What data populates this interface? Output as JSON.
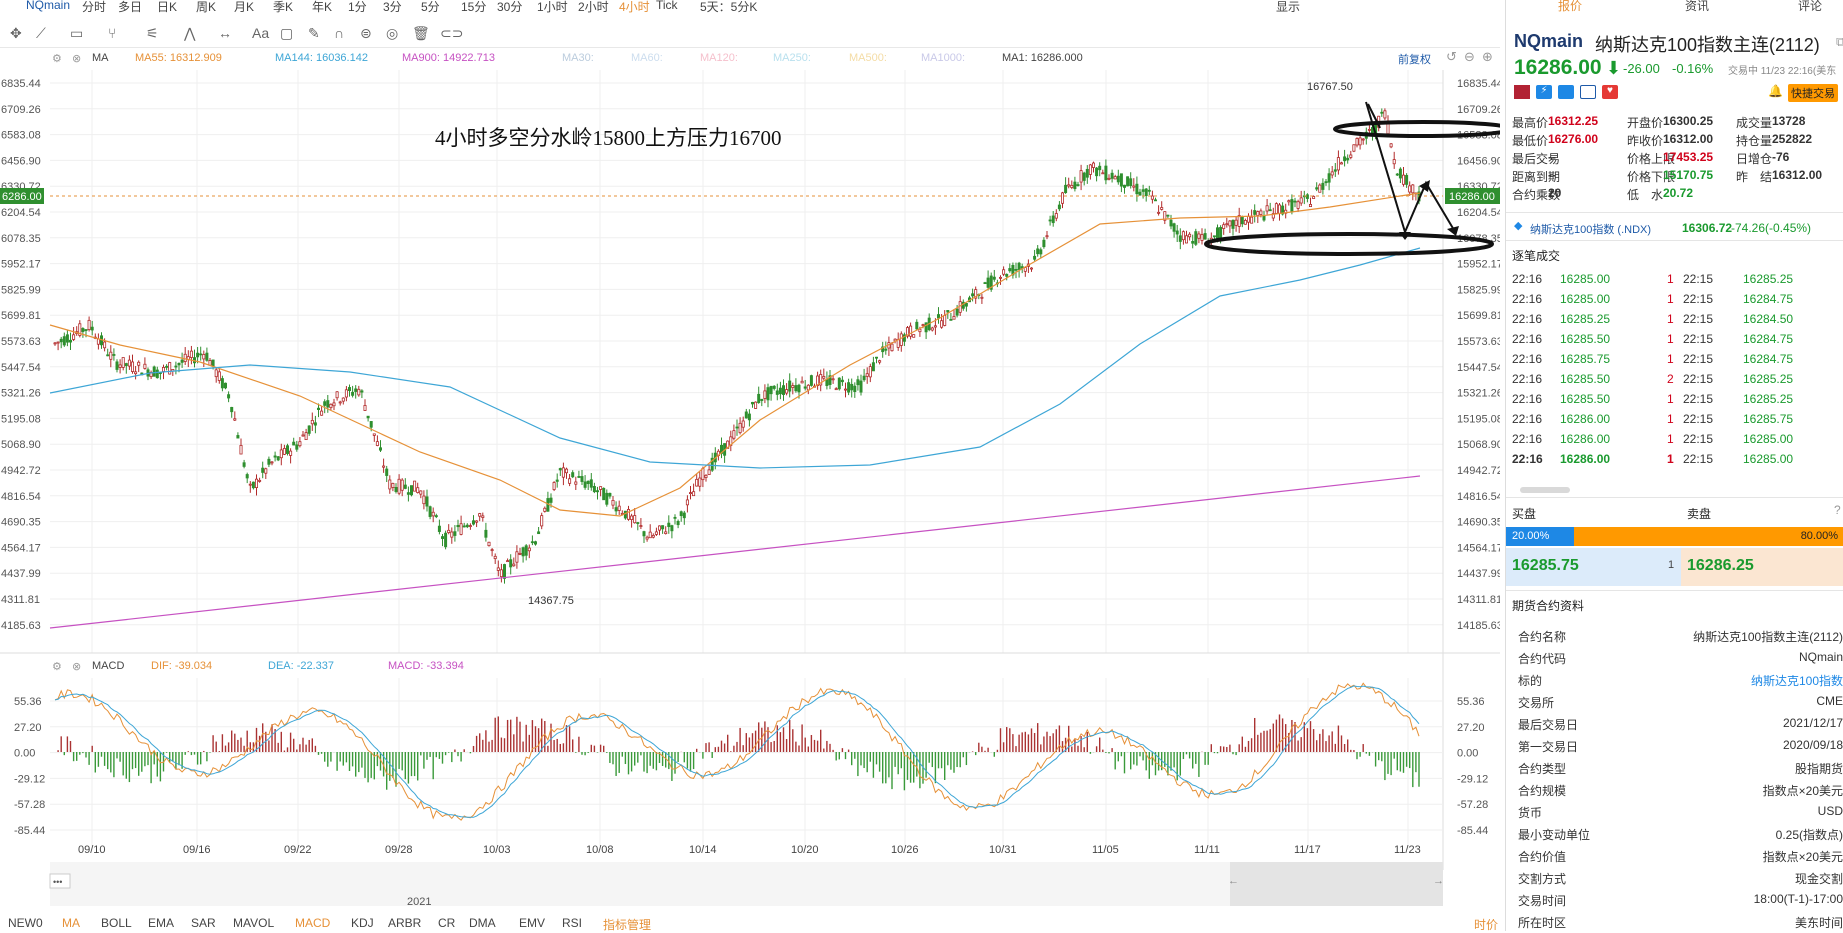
{
  "top_menu": [
    "NQmain",
    "分时",
    "多日",
    "日K",
    "周K",
    "月K",
    "季K",
    "年K",
    "1分",
    "3分",
    "5分",
    "15分",
    "30分",
    "1小时",
    "2小时",
    "4小时",
    "Tick",
    "5天：5分K"
  ],
  "top_right": [
    "显示"
  ],
  "ma_labels": [
    {
      "t": "MA",
      "c": "#444"
    },
    {
      "t": "MA55: 16312.909",
      "c": "#e69138"
    },
    {
      "t": "MA144: 16036.142",
      "c": "#3ea6d6"
    },
    {
      "t": "MA900: 14922.713",
      "c": "#c651c2"
    },
    {
      "t": "MA30:",
      "c": "#bcd"
    },
    {
      "t": "MA60:",
      "c": "#cde"
    },
    {
      "t": "MA120:",
      "c": "#f5c0cc"
    },
    {
      "t": "MA250:",
      "c": "#b9e0ee"
    },
    {
      "t": "MA500:",
      "c": "#f4dca5"
    },
    {
      "t": "MA1000:",
      "c": "#c9c9e8"
    },
    {
      "t": "MA1: 16286.000",
      "c": "#444"
    }
  ],
  "prev_restore": "前复权",
  "annotation": "4小时多空分水岭15800上方压力16700",
  "price_axis": [
    "16835.44",
    "16709.26",
    "16583.08",
    "16456.90",
    "16330.72",
    "16204.54",
    "16078.35",
    "15952.17",
    "15825.99",
    "15699.81",
    "15573.63",
    "15447.54",
    "15321.26",
    "15195.08",
    "15068.90",
    "14942.72",
    "14816.54",
    "14690.35",
    "14564.17",
    "14437.99",
    "14311.81",
    "14185.63"
  ],
  "price_axis_left": [
    "6835.44",
    "6709.26",
    "6583.08",
    "6456.90",
    "6330.72",
    "6204.54",
    "6078.35",
    "5952.17",
    "5825.99",
    "5699.81",
    "5573.63",
    "5447.54",
    "5321.26",
    "5195.08",
    "5068.90",
    "4942.72",
    "4816.54",
    "4690.35",
    "4564.17",
    "4437.99",
    "4311.81",
    "4185.63"
  ],
  "current_price_tag": "16286.00",
  "current_price_tag_left": "6286.00",
  "high_label": "16767.50",
  "low_label": "14367.75",
  "macd_labels": [
    {
      "t": "MACD",
      "c": "#444"
    },
    {
      "t": "DIF: -39.034",
      "c": "#e69138"
    },
    {
      "t": "DEA: -22.337",
      "c": "#3ea6d6"
    },
    {
      "t": "MACD: -33.394",
      "c": "#c651c2"
    }
  ],
  "macd_axis": [
    "55.36",
    "27.20",
    "0.00",
    "-29.12",
    "-57.28",
    "-85.44"
  ],
  "date_axis": [
    "09/10",
    "09/16",
    "09/22",
    "09/28",
    "10/03",
    "10/08",
    "10/14",
    "10/20",
    "10/26",
    "10/31",
    "11/05",
    "11/11",
    "11/17",
    "11/23"
  ],
  "year_label": "2021",
  "bottom_tabs": [
    "NEW0",
    "MA",
    "BOLL",
    "EMA",
    "SAR",
    "MAVOL",
    "MACD",
    "KDJ",
    "ARBR",
    "CR",
    "DMA",
    "EMV",
    "RSI",
    "指标管理"
  ],
  "bottom_right": "时价",
  "right_panel": {
    "tabs": [
      "报价",
      "资讯",
      "评论"
    ],
    "symbol": "NQmain",
    "name": "纳斯达克100指数主连(2112)",
    "price": "16286.00",
    "change": "-26.00",
    "change_pct": "-0.16%",
    "trade_status": "交易中 11/23 22:16(美东",
    "fast_trade": "快捷交易",
    "stats": [
      [
        "最高价",
        "16312.25",
        "开盘价",
        "16300.25",
        "成交量",
        "13728"
      ],
      [
        "最低价",
        "16276.00",
        "昨收价",
        "16312.00",
        "持仓量",
        "252822"
      ],
      [
        "最后交易",
        "--",
        "价格上限",
        "17453.25",
        "日增仓",
        "-76"
      ],
      [
        "距离到期",
        "--",
        "价格下限",
        "15170.75",
        "昨　结",
        "16312.00"
      ],
      [
        "合约乘数",
        "20",
        "低　水",
        "20.72",
        "",
        ""
      ]
    ],
    "index_name": "纳斯达克100指数 (.NDX)",
    "index_price": "16306.72",
    "index_change": "-74.26(-0.45%)",
    "trades_title": "逐笔成交",
    "trades": [
      [
        "22:16",
        "16285.00",
        "1",
        "22:15",
        "16285.25"
      ],
      [
        "22:16",
        "16285.00",
        "1",
        "22:15",
        "16284.75"
      ],
      [
        "22:16",
        "16285.25",
        "1",
        "22:15",
        "16284.50"
      ],
      [
        "22:16",
        "16285.50",
        "1",
        "22:15",
        "16284.75"
      ],
      [
        "22:16",
        "16285.75",
        "1",
        "22:15",
        "16284.75"
      ],
      [
        "22:16",
        "16285.50",
        "2",
        "22:15",
        "16285.25"
      ],
      [
        "22:16",
        "16285.50",
        "1",
        "22:15",
        "16285.25"
      ],
      [
        "22:16",
        "16286.00",
        "1",
        "22:15",
        "16285.75"
      ],
      [
        "22:16",
        "16286.00",
        "1",
        "22:15",
        "16285.00"
      ],
      [
        "22:16",
        "16286.00",
        "1",
        "22:15",
        "16285.00"
      ]
    ],
    "buy_label": "买盘",
    "sell_label": "卖盘",
    "buy_pct": "20.00%",
    "sell_pct": "80.00%",
    "buy_ratio": 0.2,
    "bid_price": "16285.75",
    "bid_qty": "1",
    "ask_price": "16286.25",
    "contract_title": "期货合约资料",
    "contract": [
      [
        "合约名称",
        "纳斯达克100指数主连(2112)"
      ],
      [
        "合约代码",
        "NQmain"
      ],
      [
        "标的",
        "纳斯达克100指数"
      ],
      [
        "交易所",
        "CME"
      ],
      [
        "最后交易日",
        "2021/12/17"
      ],
      [
        "第一交易日",
        "2020/09/18"
      ],
      [
        "合约类型",
        "股指期货"
      ],
      [
        "合约规模",
        "指数点×20美元"
      ],
      [
        "货币",
        "USD"
      ],
      [
        "最小变动单位",
        "0.25(指数点)"
      ],
      [
        "合约价值",
        "指数点×20美元"
      ],
      [
        "交割方式",
        "现金交割"
      ],
      [
        "交易时间",
        "18:00(T-1)-17:00"
      ],
      [
        "所在时区",
        "美东时间"
      ]
    ]
  }
}
